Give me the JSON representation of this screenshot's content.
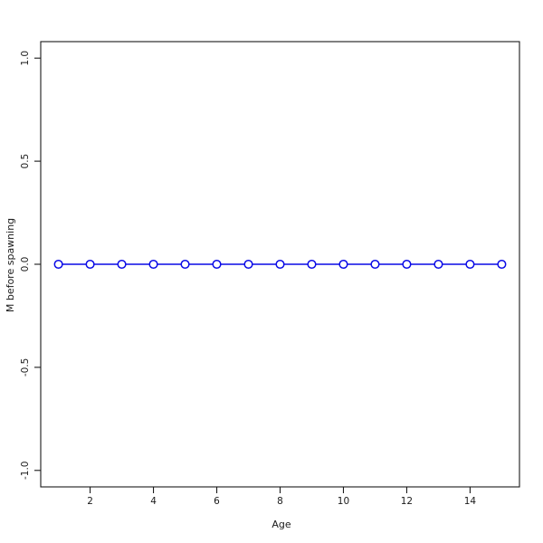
{
  "chart_data": {
    "type": "line",
    "title": "",
    "xlabel": "Age",
    "ylabel": "M before spawning",
    "x": [
      1,
      2,
      3,
      4,
      5,
      6,
      7,
      8,
      9,
      10,
      11,
      12,
      13,
      14,
      15
    ],
    "values": [
      0,
      0,
      0,
      0,
      0,
      0,
      0,
      0,
      0,
      0,
      0,
      0,
      0,
      0,
      0
    ],
    "xlim": [
      0.44,
      15.56
    ],
    "ylim": [
      -1.08,
      1.08
    ],
    "xticks": [
      2,
      4,
      6,
      8,
      10,
      12,
      14
    ],
    "xtick_labels": [
      "2",
      "4",
      "6",
      "8",
      "10",
      "12",
      "14"
    ],
    "yticks": [
      -1.0,
      -0.5,
      0.0,
      0.5,
      1.0
    ],
    "ytick_labels": [
      "-1.0",
      "-0.5",
      "0.0",
      "0.5",
      "1.0"
    ],
    "grid": false,
    "legend": null,
    "marker": "open-circle",
    "line_color": "#0a0ae6",
    "marker_fill": "#ffffff",
    "axis_color": "#1a1a1a",
    "frame": "box"
  }
}
